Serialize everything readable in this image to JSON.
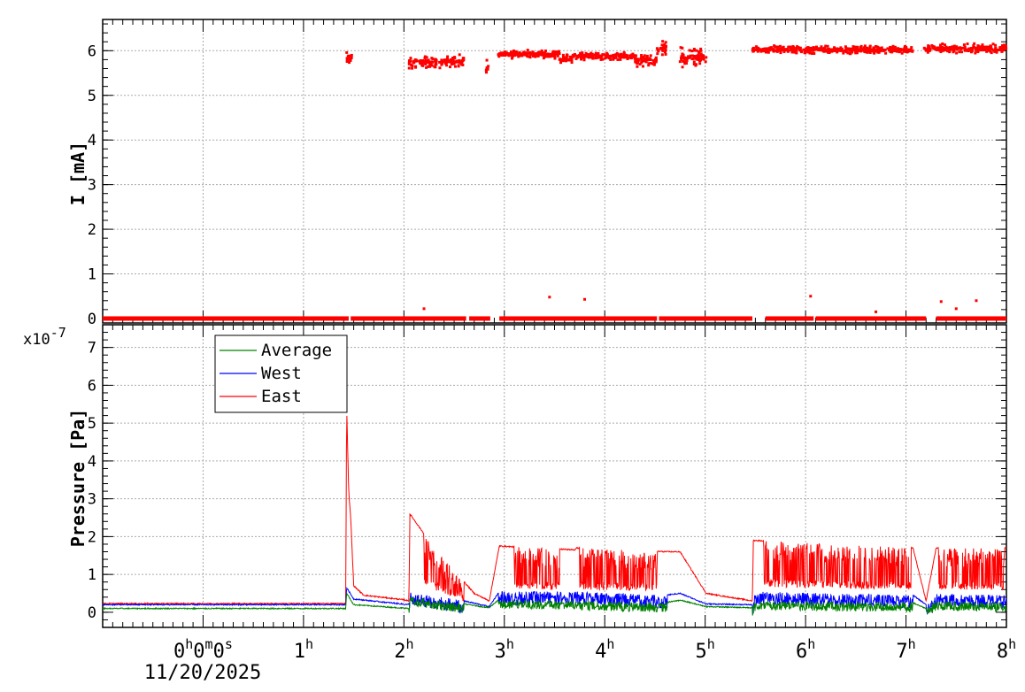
{
  "chart_data": [
    {
      "type": "scatter",
      "title": "",
      "ylabel": "I [mA]",
      "xlabel": "",
      "x_unit": "hours",
      "xlim": [
        -1,
        8
      ],
      "ylim": [
        -0.1,
        6.7
      ],
      "yticks": [
        "0",
        "1",
        "2",
        "3",
        "4",
        "5",
        "6"
      ],
      "grid": true,
      "series": [
        {
          "color": "#ff0000",
          "segments": [
            {
              "x": [
                1.42,
                1.48
              ],
              "level": 5.85,
              "spread": 0.2
            },
            {
              "x": [
                2.05,
                2.6
              ],
              "level": 5.75,
              "spread": 0.18
            },
            {
              "x": [
                2.82,
                2.84
              ],
              "level": 5.6,
              "spread": 0.35
            },
            {
              "x": [
                2.94,
                3.55
              ],
              "level": 5.92,
              "spread": 0.1
            },
            {
              "x": [
                3.55,
                3.68
              ],
              "level": 5.8,
              "spread": 0.15
            },
            {
              "x": [
                3.68,
                4.3
              ],
              "level": 5.88,
              "spread": 0.1
            },
            {
              "x": [
                4.3,
                4.52
              ],
              "level": 5.78,
              "spread": 0.15
            },
            {
              "x": [
                4.52,
                4.62
              ],
              "level": 6.05,
              "spread": 0.2
            },
            {
              "x": [
                4.75,
                5.01
              ],
              "level": 5.85,
              "spread": 0.3
            },
            {
              "x": [
                5.47,
                7.07
              ],
              "level": 6.02,
              "spread": 0.1
            },
            {
              "x": [
                7.18,
                8.0
              ],
              "level": 6.05,
              "spread": 0.12
            }
          ],
          "baseline": {
            "x": [
              -1,
              8
            ],
            "level": 0.0,
            "gaps": [
              [
                1.45,
                1.47
              ],
              [
                2.62,
                2.65
              ],
              [
                2.86,
                2.95
              ],
              [
                4.52,
                4.54
              ],
              [
                5.47,
                5.6
              ],
              [
                6.08,
                6.1
              ],
              [
                7.2,
                7.3
              ]
            ]
          },
          "outliers": [
            [
              2.2,
              0.22
            ],
            [
              3.45,
              0.48
            ],
            [
              3.8,
              0.43
            ],
            [
              6.05,
              0.5
            ],
            [
              6.7,
              0.15
            ],
            [
              7.35,
              0.38
            ],
            [
              7.5,
              0.22
            ],
            [
              7.7,
              0.4
            ]
          ]
        }
      ]
    },
    {
      "type": "line",
      "title": "",
      "ylabel": "Pressure [Pa]",
      "xlabel": "",
      "y_multiplier": "x10",
      "y_exponent": "-7",
      "x_unit": "hours",
      "xlim": [
        -1,
        8
      ],
      "ylim": [
        -0.4,
        7.6
      ],
      "yticks": [
        "0",
        "1",
        "2",
        "3",
        "4",
        "5",
        "6",
        "7"
      ],
      "grid": true,
      "legend": {
        "placement": "top-left",
        "entries": [
          "Average",
          "West",
          "East"
        ]
      },
      "series": [
        {
          "name": "Average",
          "color": "#008000",
          "base": [
            [
              -1,
              0.1
            ],
            [
              1.42,
              0.1
            ],
            [
              1.43,
              0.5
            ],
            [
              1.5,
              0.2
            ],
            [
              2.05,
              0.1
            ],
            [
              2.06,
              0.42
            ],
            [
              2.6,
              0.22
            ],
            [
              2.85,
              0.12
            ],
            [
              2.95,
              0.35
            ],
            [
              3.7,
              0.3
            ],
            [
              4.6,
              0.25
            ],
            [
              4.75,
              0.32
            ],
            [
              5.01,
              0.15
            ],
            [
              5.47,
              0.12
            ],
            [
              5.5,
              0.3
            ],
            [
              7.07,
              0.25
            ],
            [
              7.2,
              0.1
            ],
            [
              7.3,
              0.3
            ],
            [
              8.0,
              0.25
            ]
          ],
          "noisy": [
            [
              2.05,
              2.6,
              0.25
            ],
            [
              2.94,
              3.7,
              0.25
            ],
            [
              3.7,
              4.62,
              0.25
            ],
            [
              5.47,
              7.07,
              0.25
            ],
            [
              7.2,
              8.0,
              0.25
            ]
          ]
        },
        {
          "name": "West",
          "color": "#0000ff",
          "base": [
            [
              -1,
              0.2
            ],
            [
              1.42,
              0.2
            ],
            [
              1.43,
              0.65
            ],
            [
              1.5,
              0.35
            ],
            [
              2.05,
              0.2
            ],
            [
              2.06,
              0.55
            ],
            [
              2.6,
              0.3
            ],
            [
              2.85,
              0.15
            ],
            [
              2.95,
              0.55
            ],
            [
              3.7,
              0.55
            ],
            [
              4.6,
              0.45
            ],
            [
              4.75,
              0.5
            ],
            [
              5.01,
              0.22
            ],
            [
              5.47,
              0.2
            ],
            [
              5.5,
              0.55
            ],
            [
              7.07,
              0.45
            ],
            [
              7.2,
              0.2
            ],
            [
              7.3,
              0.5
            ],
            [
              8.0,
              0.45
            ]
          ],
          "noisy": [
            [
              2.05,
              2.6,
              0.35
            ],
            [
              2.94,
              3.7,
              0.35
            ],
            [
              3.7,
              4.62,
              0.35
            ],
            [
              5.47,
              7.07,
              0.35
            ],
            [
              7.2,
              8.0,
              0.35
            ]
          ]
        },
        {
          "name": "East",
          "color": "#ff0000",
          "base": [
            [
              -1,
              0.23
            ],
            [
              1.42,
              0.23
            ],
            [
              1.43,
              5.4
            ],
            [
              1.45,
              3.2
            ],
            [
              1.47,
              2.5
            ],
            [
              1.5,
              0.7
            ],
            [
              1.6,
              0.45
            ],
            [
              2.0,
              0.33
            ],
            [
              2.05,
              0.3
            ],
            [
              2.06,
              2.6
            ],
            [
              2.3,
              1.7
            ],
            [
              2.6,
              0.8
            ],
            [
              2.7,
              0.5
            ],
            [
              2.85,
              0.3
            ],
            [
              2.95,
              1.75
            ],
            [
              3.7,
              1.65
            ],
            [
              3.72,
              1.7
            ],
            [
              4.62,
              1.6
            ],
            [
              4.75,
              1.6
            ],
            [
              5.01,
              0.5
            ],
            [
              5.47,
              0.3
            ],
            [
              5.48,
              1.9
            ],
            [
              7.07,
              1.7
            ],
            [
              7.2,
              0.3
            ],
            [
              7.3,
              1.7
            ],
            [
              8.0,
              1.7
            ]
          ],
          "noisy": [
            [
              2.2,
              2.6,
              1.5
            ],
            [
              3.1,
              3.55,
              1.5
            ],
            [
              3.75,
              4.52,
              1.4
            ],
            [
              5.58,
              7.05,
              1.4
            ],
            [
              7.32,
              7.98,
              1.4
            ]
          ]
        }
      ]
    }
  ],
  "x_axis": {
    "ticks": [
      "0h0m0s",
      "1h",
      "2h",
      "3h",
      "4h",
      "5h",
      "6h",
      "7h",
      "8h"
    ],
    "date": "11/20/2025"
  }
}
